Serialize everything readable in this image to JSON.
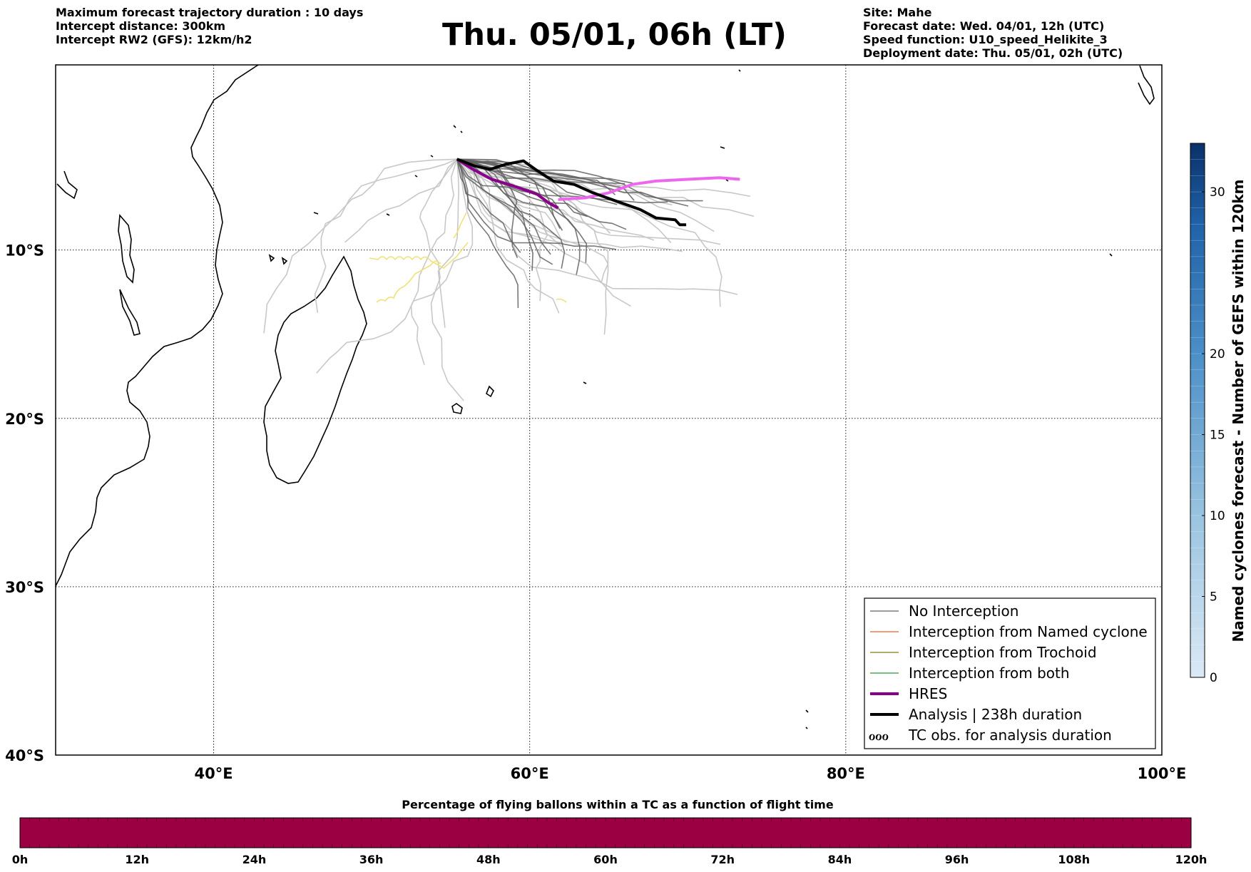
{
  "header": {
    "left": [
      "Maximum forecast trajectory duration : 10 days",
      "Intercept distance: 300km",
      "Intercept RW2 (GFS):  12km/h2"
    ],
    "title": "Thu. 05/01, 06h (LT)",
    "right": [
      "Site: Mahe",
      "Forecast date: Wed. 04/01, 12h (UTC)",
      "Speed function: U10_speed_Helikite_3",
      "Deployment date: Thu. 05/01, 02h (UTC)"
    ]
  },
  "map": {
    "lon_range": [
      30,
      100
    ],
    "lat_range": [
      -40,
      1
    ],
    "lon_ticks": [
      {
        "v": 40,
        "label": "40°E"
      },
      {
        "v": 60,
        "label": "60°E"
      },
      {
        "v": 80,
        "label": "80°E"
      },
      {
        "v": 100,
        "label": "100°E"
      }
    ],
    "lat_ticks": [
      {
        "v": -10,
        "label": "10°S"
      },
      {
        "v": -20,
        "label": "20°S"
      },
      {
        "v": -30,
        "label": "30°S"
      },
      {
        "v": -40,
        "label": "40°S"
      }
    ],
    "grid": true,
    "colors": {
      "no_interception": "#606060",
      "named_cyclone": "#e8632a",
      "trochoid": "#8a7a10",
      "both": "#2a9a2a",
      "hres": "#8b008b",
      "hres_ext": "#ee66ee",
      "analysis": "#000000",
      "faint": "#c8c8c8",
      "yellow": "#eee27a"
    },
    "analysis_track": [
      [
        55.4,
        -4.6
      ],
      [
        56.5,
        -5.0
      ],
      [
        57.5,
        -5.2
      ],
      [
        58.5,
        -4.9
      ],
      [
        59.6,
        -4.7
      ],
      [
        60.5,
        -5.3
      ],
      [
        61.5,
        -5.9
      ],
      [
        62.8,
        -6.1
      ],
      [
        64,
        -6.6
      ],
      [
        65.5,
        -7.1
      ],
      [
        67,
        -7.6
      ],
      [
        68,
        -8.1
      ],
      [
        69.2,
        -8.2
      ],
      [
        69.5,
        -8.5
      ],
      [
        69.9,
        -8.5
      ]
    ],
    "hres_track": [
      [
        55.4,
        -4.6
      ],
      [
        56.4,
        -5.2
      ],
      [
        57.6,
        -5.8
      ],
      [
        59,
        -6.2
      ],
      [
        60.5,
        -6.7
      ],
      [
        61.2,
        -7.2
      ],
      [
        61.8,
        -7.5
      ]
    ],
    "hres_ext_track": [
      [
        61.8,
        -7.0
      ],
      [
        63.5,
        -6.9
      ],
      [
        65,
        -6.6
      ],
      [
        66.5,
        -6.1
      ],
      [
        68,
        -5.9
      ],
      [
        70,
        -5.8
      ],
      [
        72,
        -5.7
      ],
      [
        73.3,
        -5.8
      ]
    ],
    "legend": [
      {
        "label": "No Interception",
        "style": "thin",
        "color": "#606060"
      },
      {
        "label": "Interception from Named cyclone",
        "style": "thin",
        "color": "#e8632a"
      },
      {
        "label": "Interception from Trochoid",
        "style": "thin",
        "color": "#8a7a10"
      },
      {
        "label": "Interception from both",
        "style": "thin",
        "color": "#2a9a2a"
      },
      {
        "label": "HRES",
        "style": "thick",
        "color": "#8b008b"
      },
      {
        "label": "Analysis | 238h duration",
        "style": "thick",
        "color": "#000000"
      },
      {
        "label": "TC obs. for analysis duration",
        "style": "glyph",
        "glyph": "ℴℴℴ"
      }
    ]
  },
  "colorbar_right": {
    "label": "Named cyclones forecast - Number of GEFS within 120km",
    "ticks": [
      0,
      5,
      10,
      15,
      20,
      30
    ],
    "max": 33,
    "colors": [
      "#dce9f6",
      "#0a3068"
    ]
  },
  "colorbar_bottom": {
    "title": "Percentage of flying ballons within a TC as a function of flight time",
    "ticks": [
      "0h",
      "12h",
      "24h",
      "36h",
      "48h",
      "60h",
      "72h",
      "84h",
      "96h",
      "108h",
      "120h"
    ],
    "color": "#9b0042"
  }
}
